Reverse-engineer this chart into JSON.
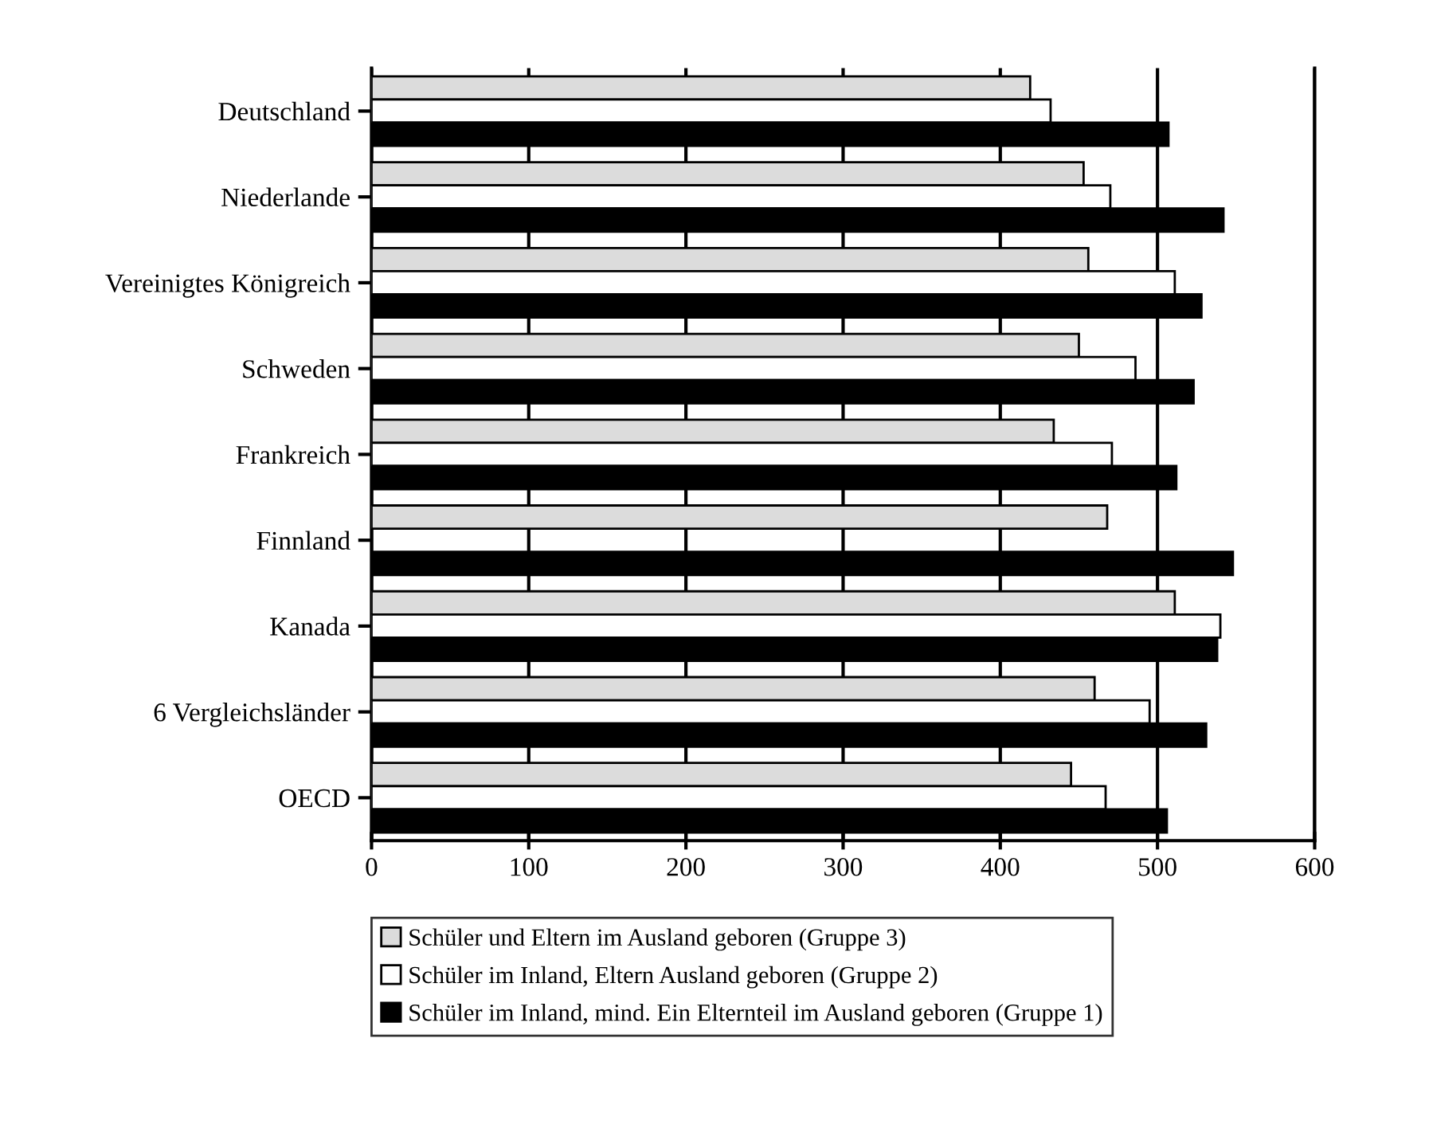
{
  "chart_data": {
    "type": "bar",
    "orientation": "horizontal",
    "categories": [
      "Deutschland",
      "Niederlande",
      "Vereinigtes Königreich",
      "Schweden",
      "Frankreich",
      "Finnland",
      "Kanada",
      "6 Vergleichsländer",
      "OECD"
    ],
    "series": [
      {
        "name": "Schüler und Eltern im Ausland geboren (Gruppe 3)",
        "color": "#dcdcdc",
        "values": [
          419,
          453,
          456,
          450,
          434,
          468,
          511,
          460,
          445
        ]
      },
      {
        "name": "Schüler im Inland, Eltern Ausland geboren (Gruppe 2)",
        "color": "#ffffff",
        "values": [
          432,
          470,
          511,
          486,
          471,
          null,
          540,
          495,
          467
        ]
      },
      {
        "name": "Schüler im Inland, mind. Ein Elternteil im Ausland geboren (Gruppe 1)",
        "color": "#000000",
        "values": [
          507,
          542,
          528,
          523,
          512,
          548,
          538,
          531,
          506
        ]
      }
    ],
    "xlim": [
      0,
      600
    ],
    "xticks": [
      0,
      100,
      200,
      300,
      400,
      500,
      600
    ],
    "grid": "x",
    "legend": "bottom"
  }
}
